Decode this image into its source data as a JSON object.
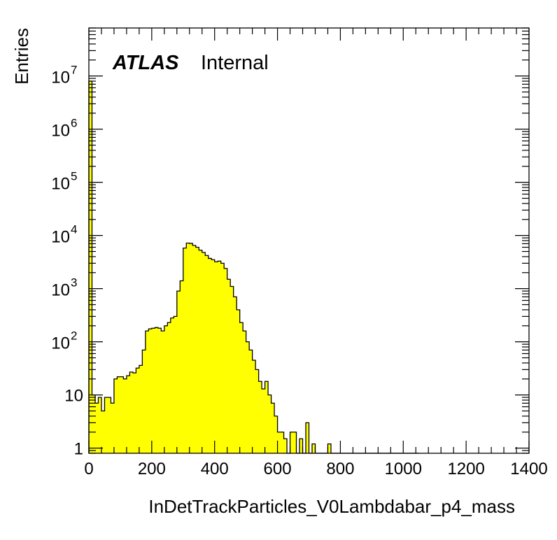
{
  "chart_data": {
    "type": "histogram",
    "xlabel": "InDetTrackParticles_V0Lambdabar_p4_mass",
    "ylabel": "Entries",
    "experiment_label": "ATLAS",
    "status_label": "Internal",
    "xlim": [
      0,
      1400
    ],
    "ylim": [
      0.8,
      80000000
    ],
    "y_scale": "log",
    "bin_width": 10,
    "x_ticks": [
      0,
      200,
      400,
      600,
      800,
      1000,
      1200,
      1400
    ],
    "y_ticks": [
      {
        "value": 1,
        "base": "1",
        "exp": ""
      },
      {
        "value": 10,
        "base": "10",
        "exp": ""
      },
      {
        "value": 100,
        "base": "10",
        "exp": "2"
      },
      {
        "value": 1000,
        "base": "10",
        "exp": "3"
      },
      {
        "value": 10000,
        "base": "10",
        "exp": "4"
      },
      {
        "value": 100000,
        "base": "10",
        "exp": "5"
      },
      {
        "value": 1000000,
        "base": "10",
        "exp": "6"
      },
      {
        "value": 10000000,
        "base": "10",
        "exp": "7"
      }
    ],
    "fill_color": "#ffff00",
    "line_color": "#000000",
    "bins": [
      [
        0,
        8000000
      ],
      [
        10,
        10
      ],
      [
        20,
        7
      ],
      [
        30,
        9
      ],
      [
        40,
        5
      ],
      [
        50,
        9
      ],
      [
        60,
        9
      ],
      [
        70,
        7
      ],
      [
        80,
        20
      ],
      [
        90,
        22
      ],
      [
        100,
        22
      ],
      [
        110,
        20
      ],
      [
        120,
        23
      ],
      [
        130,
        27
      ],
      [
        140,
        26
      ],
      [
        150,
        32
      ],
      [
        160,
        36
      ],
      [
        170,
        70
      ],
      [
        180,
        160
      ],
      [
        190,
        175
      ],
      [
        200,
        180
      ],
      [
        210,
        185
      ],
      [
        220,
        180
      ],
      [
        230,
        160
      ],
      [
        240,
        200
      ],
      [
        250,
        230
      ],
      [
        260,
        280
      ],
      [
        270,
        300
      ],
      [
        280,
        900
      ],
      [
        290,
        1400
      ],
      [
        300,
        5800
      ],
      [
        310,
        7200
      ],
      [
        320,
        7100
      ],
      [
        330,
        6500
      ],
      [
        340,
        6000
      ],
      [
        350,
        5300
      ],
      [
        360,
        4800
      ],
      [
        370,
        4200
      ],
      [
        380,
        3700
      ],
      [
        390,
        3500
      ],
      [
        400,
        3200
      ],
      [
        410,
        3300
      ],
      [
        420,
        3000
      ],
      [
        430,
        2400
      ],
      [
        440,
        1500
      ],
      [
        450,
        1100
      ],
      [
        460,
        700
      ],
      [
        470,
        400
      ],
      [
        480,
        230
      ],
      [
        490,
        160
      ],
      [
        500,
        100
      ],
      [
        510,
        70
      ],
      [
        520,
        45
      ],
      [
        530,
        30
      ],
      [
        540,
        18
      ],
      [
        550,
        13
      ],
      [
        560,
        18
      ],
      [
        570,
        10
      ],
      [
        580,
        7
      ],
      [
        590,
        4
      ],
      [
        600,
        2
      ],
      [
        610,
        2
      ],
      [
        620,
        1.5
      ],
      [
        630,
        0.8
      ],
      [
        640,
        2
      ],
      [
        650,
        2
      ],
      [
        660,
        0.8
      ],
      [
        670,
        1.5
      ],
      [
        680,
        0.8
      ],
      [
        690,
        3
      ],
      [
        700,
        0.8
      ],
      [
        710,
        1.2
      ],
      [
        720,
        0.8
      ],
      [
        730,
        0.8
      ],
      [
        740,
        0.8
      ],
      [
        750,
        0.8
      ],
      [
        760,
        1.2
      ],
      [
        770,
        0.8
      ],
      [
        780,
        0.8
      ],
      [
        790,
        0.8
      ],
      [
        800,
        0.8
      ],
      [
        810,
        0.8
      ],
      [
        820,
        0.8
      ],
      [
        830,
        0.8
      ],
      [
        840,
        0.8
      ],
      [
        850,
        0.8
      ],
      [
        860,
        0.8
      ],
      [
        870,
        0.8
      ],
      [
        880,
        0.8
      ],
      [
        890,
        0.8
      ],
      [
        900,
        0.8
      ],
      [
        910,
        0.8
      ],
      [
        920,
        0.8
      ],
      [
        930,
        0.8
      ],
      [
        940,
        0.8
      ],
      [
        950,
        0.8
      ],
      [
        960,
        0.8
      ],
      [
        970,
        0.8
      ],
      [
        980,
        0.8
      ],
      [
        990,
        0.8
      ],
      [
        1000,
        0.8
      ],
      [
        1010,
        0.8
      ],
      [
        1020,
        0.8
      ],
      [
        1030,
        0.8
      ],
      [
        1040,
        0.8
      ]
    ]
  }
}
